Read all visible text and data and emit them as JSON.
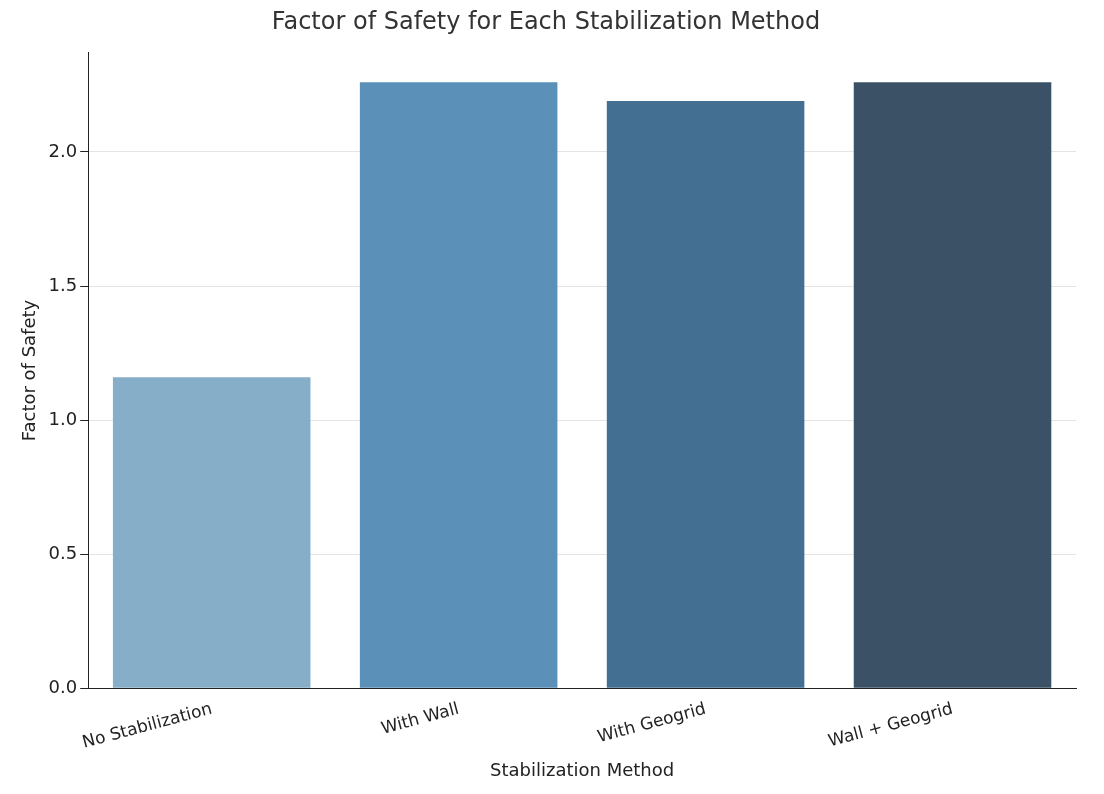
{
  "chart_data": {
    "type": "bar",
    "title": "Factor of Safety for Each Stabilization Method",
    "xlabel": "Stabilization Method",
    "ylabel": "Factor of Safety",
    "categories": [
      "No Stabilization",
      "With Wall",
      "With Geogrid",
      "Wall + Geogrid"
    ],
    "values": [
      1.16,
      2.26,
      2.19,
      2.26
    ],
    "colors": [
      "#87aec9",
      "#5b90b8",
      "#436f92",
      "#3b5266"
    ],
    "ylim": [
      0,
      2.37
    ],
    "yticks": [
      {
        "value": 0,
        "label": "0.0"
      },
      {
        "value": 0.5,
        "label": "0.5"
      },
      {
        "value": 1,
        "label": "1.0"
      },
      {
        "value": 1.5,
        "label": "1.5"
      },
      {
        "value": 2,
        "label": "2.0"
      }
    ],
    "grid": "y",
    "legend": false
  }
}
